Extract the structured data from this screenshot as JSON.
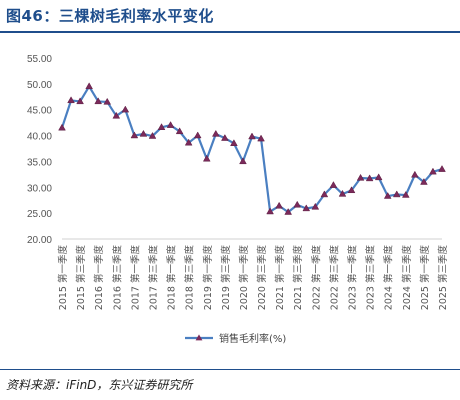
{
  "figure_title": "图46：三棵树毛利率水平变化",
  "source_text": "资料来源：iFinD，东兴证券研究所",
  "colors": {
    "title": "#1f4e8c",
    "line": "#4a7fc1",
    "marker": "#7b2a5a"
  },
  "chart_data": {
    "type": "line",
    "title": "",
    "xlabel": "",
    "ylabel": "",
    "ylim": [
      20,
      55
    ],
    "y_ticks": [
      "20.00",
      "25.00",
      "30.00",
      "35.00",
      "40.00",
      "45.00",
      "50.00",
      "55.00"
    ],
    "grid": false,
    "legend_position": "bottom-center",
    "categories": [
      "2015第一季度",
      "2015第二季度",
      "2015第三季度",
      "2015第四季度",
      "2016第一季度",
      "2016第二季度",
      "2016第三季度",
      "2016第四季度",
      "2017第一季度",
      "2017第二季度",
      "2017第三季度",
      "2017第四季度",
      "2018第一季度",
      "2018第二季度",
      "2018第三季度",
      "2018第四季度",
      "2019第一季度",
      "2019第二季度",
      "2019第三季度",
      "2019第四季度",
      "2020第一季度",
      "2020第二季度",
      "2020第三季度",
      "2020第四季度",
      "2021第一季度",
      "2021第二季度",
      "2021第三季度",
      "2021第四季度",
      "2022第一季度",
      "2022第二季度",
      "2022第三季度",
      "2022第四季度",
      "2023第一季度",
      "2023第二季度",
      "2023第三季度",
      "2023第四季度",
      "2024第一季度",
      "2024第二季度",
      "2024第三季度",
      "2024第四季度",
      "2025第一季度",
      "2025第二季度",
      "2025第三季度"
    ],
    "x_tick_labels": [
      "2015 第一季度",
      "2015 第三季度",
      "2016 第一季度",
      "2016 第三季度",
      "2017 第一季度",
      "2017 第三季度",
      "2018 第一季度",
      "2018 第三季度",
      "2019 第一季度",
      "2019 第三季度",
      "2020 第一季度",
      "2020 第三季度",
      "2021 第一季度",
      "2021 第三季度",
      "2022 第一季度",
      "2022 第三季度",
      "2023 第一季度",
      "2023 第三季度",
      "2024 第一季度",
      "2024 第三季度",
      "2025 第一季度",
      "2025 第三季度"
    ],
    "series": [
      {
        "name": "销售毛利率(%)",
        "values": [
          41.5,
          46.8,
          46.6,
          49.5,
          46.6,
          46.5,
          43.8,
          45.0,
          40.0,
          40.3,
          39.9,
          41.6,
          42.0,
          40.8,
          38.6,
          40.0,
          35.5,
          40.3,
          39.5,
          38.5,
          35.0,
          39.8,
          39.4,
          25.3,
          26.4,
          25.2,
          26.6,
          25.9,
          26.2,
          28.6,
          30.4,
          28.7,
          29.4,
          31.8,
          31.7,
          31.9,
          28.3,
          28.6,
          28.5,
          32.4,
          31.0,
          33.0,
          33.5
        ]
      }
    ]
  }
}
